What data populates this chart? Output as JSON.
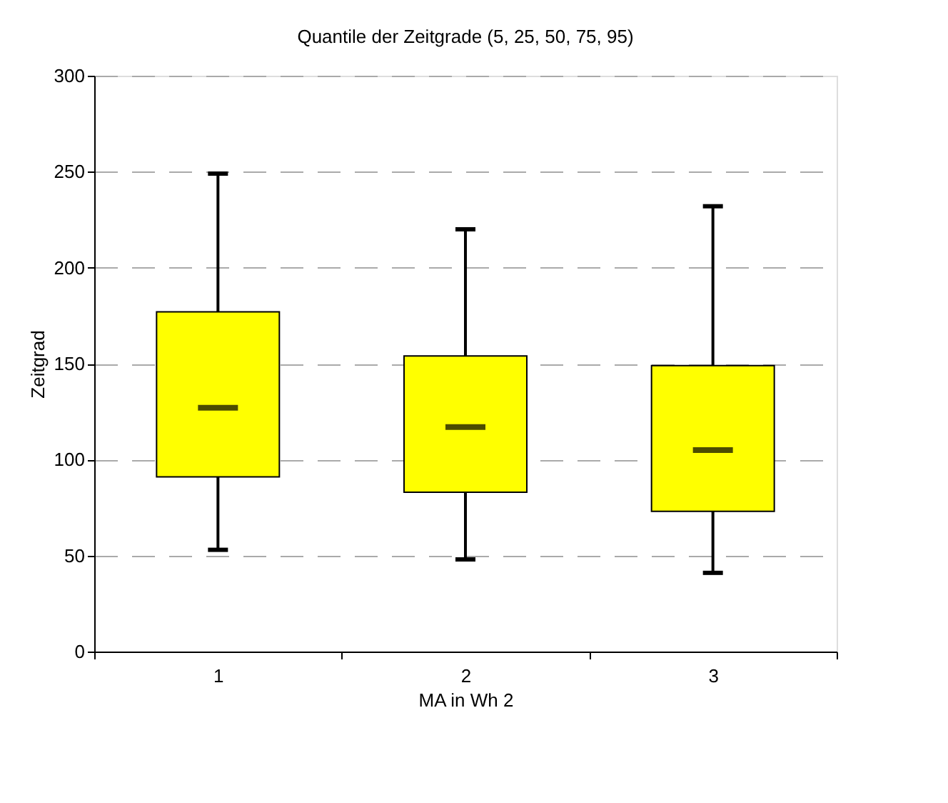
{
  "chart_data": {
    "type": "box",
    "title": "Quantile der Zeitgrade (5, 25, 50, 75, 95)",
    "xlabel": "MA in Wh 2",
    "ylabel": "Zeitgrad",
    "categories": [
      "1",
      "2",
      "3"
    ],
    "color": "#ffff00",
    "boxes": [
      {
        "low": 53,
        "q1": 91,
        "median": 127,
        "q3": 177,
        "high": 249
      },
      {
        "low": 48,
        "q1": 83,
        "median": 117,
        "q3": 154,
        "high": 220
      },
      {
        "low": 41,
        "q1": 73,
        "median": 105,
        "q3": 149,
        "high": 232
      }
    ],
    "ylim": [
      0,
      300
    ],
    "yticks": [
      0,
      50,
      100,
      150,
      200,
      250,
      300
    ],
    "grid": "y"
  }
}
